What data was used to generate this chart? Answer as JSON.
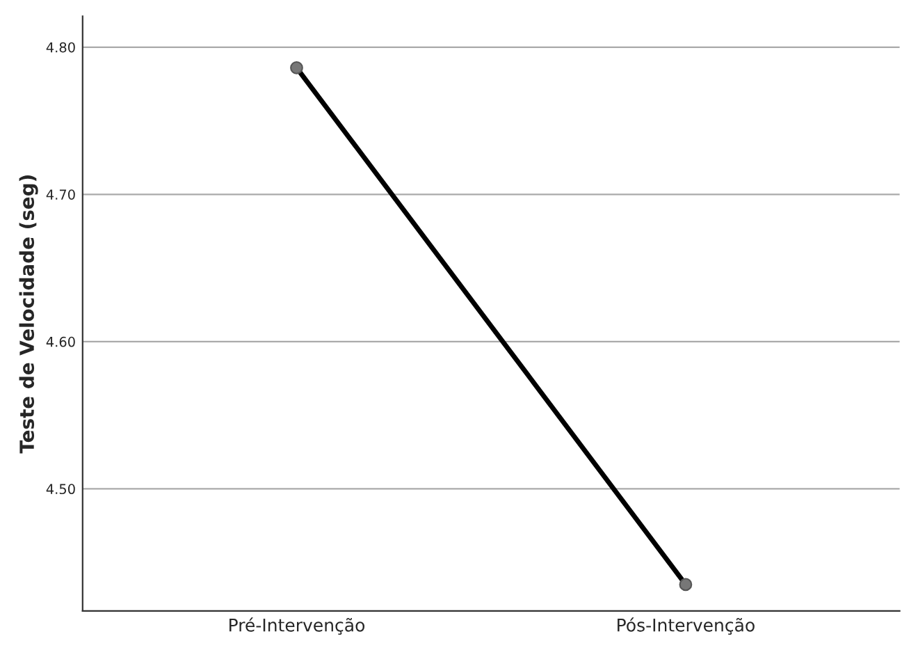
{
  "chart_data": {
    "type": "line",
    "ylabel": "Teste de Velocidade (seg)",
    "categories": [
      "Pré-Intervenção",
      "Pós-Intervenção"
    ],
    "series": [
      {
        "color": "#000000",
        "values": [
          4.786,
          4.435
        ]
      }
    ],
    "ylim": [
      4.417,
      4.821
    ],
    "yticks": [
      {
        "value": 4.5,
        "label": "4.50"
      },
      {
        "value": 4.6,
        "label": "4.60"
      },
      {
        "value": 4.7,
        "label": "4.70"
      },
      {
        "value": 4.8,
        "label": "4.80"
      }
    ],
    "grid": "y",
    "marker": "circle",
    "line_style": "solid"
  }
}
